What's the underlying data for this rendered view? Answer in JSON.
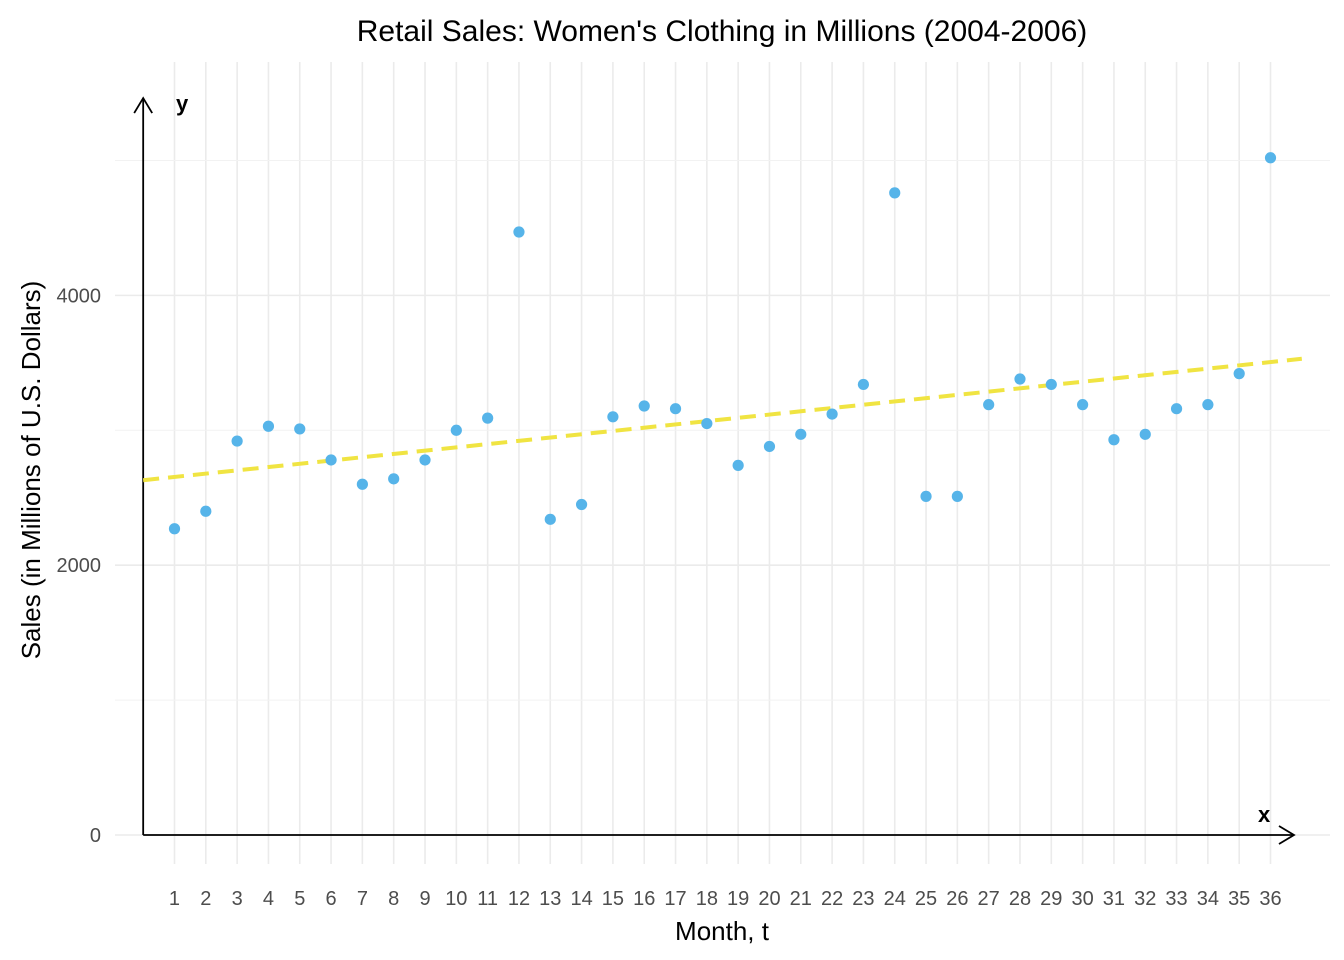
{
  "chart_data": {
    "type": "scatter",
    "title": "Retail Sales: Women's Clothing in Millions (2004-2006)",
    "xlabel": "Month, t",
    "ylabel": "Sales (in Millions of U.S. Dollars)",
    "x_axis_letter": "x",
    "y_axis_letter": "y",
    "x": [
      1,
      2,
      3,
      4,
      5,
      6,
      7,
      8,
      9,
      10,
      11,
      12,
      13,
      14,
      15,
      16,
      17,
      18,
      19,
      20,
      21,
      22,
      23,
      24,
      25,
      26,
      27,
      28,
      29,
      30,
      31,
      32,
      33,
      34,
      35,
      36
    ],
    "x_tick_labels": [
      "1",
      "2",
      "3",
      "4",
      "5",
      "6",
      "7",
      "8",
      "9",
      "10",
      "11",
      "12",
      "13",
      "14",
      "15",
      "16",
      "17",
      "18",
      "19",
      "20",
      "21",
      "22",
      "23",
      "24",
      "25",
      "26",
      "27",
      "28",
      "29",
      "30",
      "31",
      "32",
      "33",
      "34",
      "35",
      "36"
    ],
    "y_ticks": [
      0,
      2000,
      4000
    ],
    "y_tick_labels": [
      "0",
      "2000",
      "4000"
    ],
    "series": [
      {
        "values": [
          2270,
          2400,
          2920,
          3030,
          3010,
          2780,
          2600,
          2640,
          2780,
          3000,
          3090,
          4470,
          2340,
          2450,
          3100,
          3180,
          3160,
          3050,
          2740,
          2880,
          2970,
          3120,
          3340,
          4760,
          2510,
          2510,
          3190,
          3380,
          3340,
          3190,
          2930,
          2970,
          3160,
          3190,
          3420,
          5020
        ],
        "color": "#56b4e9"
      }
    ],
    "trendline": {
      "style": "dashed",
      "color": "#f0e442",
      "x_start": 0,
      "y_start": 2630,
      "x_end": 37,
      "y_end": 3530
    },
    "xlim": [
      -0.9,
      37.9
    ],
    "ylim": [
      -215,
      5730
    ],
    "grid": true,
    "legend": "none"
  }
}
